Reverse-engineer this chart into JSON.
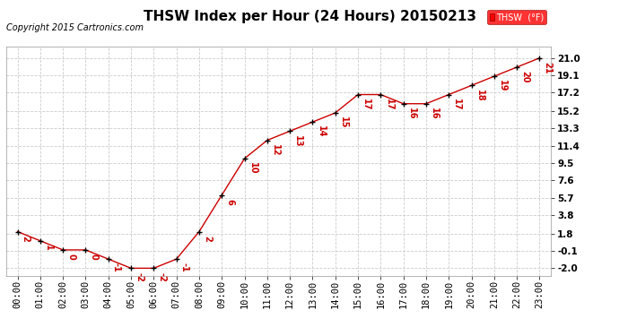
{
  "title": "THSW Index per Hour (24 Hours) 20150213",
  "copyright": "Copyright 2015 Cartronics.com",
  "legend_label": "THSW  (°F)",
  "hours": [
    "00:00",
    "01:00",
    "02:00",
    "03:00",
    "04:00",
    "05:00",
    "06:00",
    "07:00",
    "08:00",
    "09:00",
    "10:00",
    "11:00",
    "12:00",
    "13:00",
    "14:00",
    "15:00",
    "16:00",
    "17:00",
    "18:00",
    "19:00",
    "20:00",
    "21:00",
    "22:00",
    "23:00"
  ],
  "values": [
    2.0,
    1.0,
    0.0,
    0.0,
    -1.0,
    -2.0,
    -2.0,
    -1.0,
    2.0,
    6.0,
    10.0,
    12.0,
    13.0,
    14.0,
    15.0,
    17.0,
    17.0,
    16.0,
    16.0,
    17.0,
    18.0,
    19.0,
    20.0,
    21.0
  ],
  "line_color": "#cc0000",
  "marker_color": "#000000",
  "bg_color": "#ffffff",
  "grid_color": "#cccccc",
  "ytick_labels": [
    "21.0",
    "19.1",
    "17.2",
    "15.2",
    "13.3",
    "11.4",
    "9.5",
    "7.6",
    "5.7",
    "3.8",
    "1.8",
    "-0.1",
    "-2.0"
  ],
  "ytick_values": [
    21.0,
    19.1,
    17.2,
    15.2,
    13.3,
    11.4,
    9.5,
    7.6,
    5.7,
    3.8,
    1.8,
    -0.1,
    -2.0
  ],
  "ylim_min": -2.8,
  "ylim_max": 22.2,
  "title_fontsize": 11,
  "label_fontsize": 7.5,
  "annotation_fontsize": 7,
  "copyright_fontsize": 7
}
